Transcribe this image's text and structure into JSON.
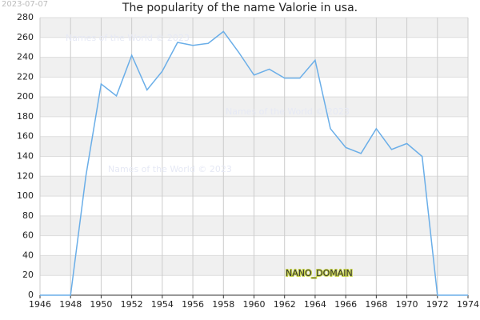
{
  "chart_data": {
    "type": "line",
    "title": "The popularity of the name Valorie in usa.",
    "date": "2023-07-07",
    "watermarks": [
      "Names of the World © 2023",
      "Names of the World © 2023",
      "Names of the World © 2023"
    ],
    "domain_label": "NANO_DOMAIN",
    "x": [
      1946,
      1947,
      1948,
      1949,
      1950,
      1951,
      1952,
      1953,
      1954,
      1955,
      1956,
      1957,
      1958,
      1959,
      1960,
      1961,
      1962,
      1963,
      1964,
      1965,
      1966,
      1967,
      1968,
      1969,
      1970,
      1971,
      1972,
      1973,
      1974
    ],
    "series": [
      {
        "name": "Valorie",
        "color": "#6aaee8",
        "values": [
          0,
          0,
          0,
          120,
          213,
          201,
          242,
          207,
          226,
          255,
          252,
          254,
          266,
          245,
          222,
          228,
          219,
          219,
          237,
          168,
          149,
          143,
          168,
          147,
          153,
          140,
          0,
          0,
          0
        ]
      }
    ],
    "xlim": [
      1946,
      1974
    ],
    "xticks": [
      1946,
      1948,
      1950,
      1952,
      1954,
      1956,
      1958,
      1960,
      1962,
      1964,
      1966,
      1968,
      1970,
      1972,
      1974
    ],
    "ylim": [
      0,
      280
    ],
    "yticks": [
      0,
      20,
      40,
      60,
      80,
      100,
      120,
      140,
      160,
      180,
      200,
      220,
      240,
      260,
      280
    ],
    "grid": true,
    "banded": true,
    "legend": false
  }
}
